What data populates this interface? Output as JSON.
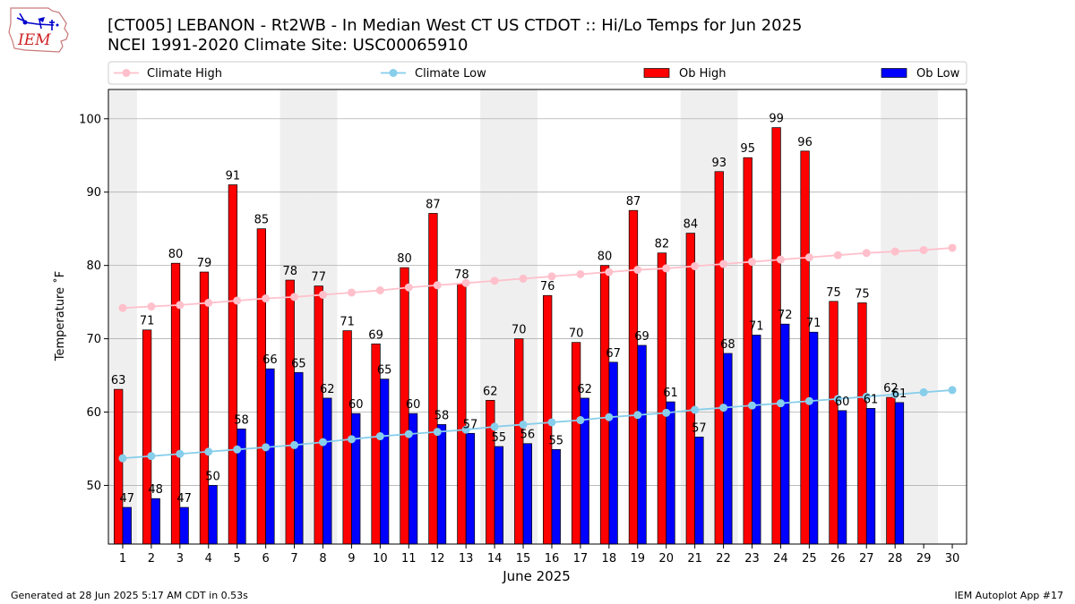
{
  "header": {
    "logo_text": "IEM",
    "title_line1": "[CT005] LEBANON - Rt2WB - In Median West CT US  CTDOT :: Hi/Lo Temps for Jun 2025",
    "title_line2": "NCEI 1991-2020 Climate Site: USC00065910"
  },
  "footer": {
    "left": "Generated at 28 Jun 2025 5:17 AM CDT in 0.53s",
    "right": "IEM Autoplot App #17"
  },
  "colors": {
    "ob_high": "#ff0000",
    "ob_low": "#0000ff",
    "climate_high": "#ffc0cb",
    "climate_low": "#87ceeb",
    "weekend_shade": "#efefef",
    "grid": "#b0b0b0"
  },
  "chart_data": {
    "type": "bar",
    "xlabel": "June 2025",
    "ylabel": "Temperature ˚F",
    "ylim": [
      42,
      104
    ],
    "yticks": [
      50,
      60,
      70,
      80,
      90,
      100
    ],
    "xlim": [
      0.5,
      30.5
    ],
    "days": [
      1,
      2,
      3,
      4,
      5,
      6,
      7,
      8,
      9,
      10,
      11,
      12,
      13,
      14,
      15,
      16,
      17,
      18,
      19,
      20,
      21,
      22,
      23,
      24,
      25,
      26,
      27,
      28,
      29,
      30
    ],
    "weekend_days": [
      1,
      7,
      8,
      14,
      15,
      21,
      22,
      28,
      29
    ],
    "grid": "horizontal",
    "legend_placement": "top",
    "legend": [
      "Climate High",
      "Climate Low",
      "Ob High",
      "Ob Low"
    ],
    "series": [
      {
        "name": "Ob High",
        "kind": "bar",
        "values": [
          63,
          71,
          80,
          79,
          91,
          85,
          78,
          77,
          71,
          69,
          80,
          87,
          78,
          62,
          70,
          76,
          70,
          80,
          87,
          82,
          84,
          93,
          95,
          99,
          96,
          75,
          75,
          62
        ],
        "display": [
          63.1,
          71.2,
          80.3,
          79.1,
          91.0,
          85.0,
          78.0,
          77.2,
          71.1,
          69.3,
          79.7,
          87.1,
          77.5,
          61.6,
          70.0,
          75.9,
          69.5,
          80.0,
          87.5,
          81.7,
          84.4,
          92.8,
          94.7,
          98.8,
          95.6,
          75.1,
          74.9,
          62.0
        ]
      },
      {
        "name": "Ob Low",
        "kind": "bar",
        "values": [
          47,
          48,
          47,
          50,
          58,
          66,
          65,
          62,
          60,
          65,
          60,
          58,
          57,
          55,
          56,
          55,
          62,
          67,
          69,
          61,
          57,
          68,
          71,
          72,
          71,
          60,
          61,
          61
        ],
        "display": [
          47.0,
          48.2,
          47.0,
          50.0,
          57.7,
          65.9,
          65.4,
          61.9,
          59.8,
          64.5,
          59.8,
          58.3,
          57.1,
          55.3,
          55.7,
          54.9,
          61.9,
          66.8,
          69.1,
          61.4,
          56.6,
          68.0,
          70.5,
          72.0,
          70.9,
          60.2,
          60.5,
          61.3
        ]
      },
      {
        "name": "Climate High",
        "kind": "line",
        "values": [
          74.2,
          74.4,
          74.6,
          74.9,
          75.2,
          75.5,
          75.7,
          76.0,
          76.3,
          76.6,
          77.0,
          77.3,
          77.6,
          77.9,
          78.2,
          78.5,
          78.8,
          79.1,
          79.4,
          79.6,
          79.9,
          80.2,
          80.5,
          80.8,
          81.1,
          81.4,
          81.7,
          81.9,
          82.1,
          82.4
        ]
      },
      {
        "name": "Climate Low",
        "kind": "line",
        "values": [
          53.7,
          54.0,
          54.3,
          54.6,
          54.9,
          55.2,
          55.5,
          55.9,
          56.3,
          56.7,
          57.0,
          57.3,
          57.6,
          58.0,
          58.3,
          58.6,
          58.9,
          59.3,
          59.6,
          59.9,
          60.3,
          60.6,
          60.9,
          61.2,
          61.5,
          61.8,
          62.1,
          62.4,
          62.7,
          63.0
        ]
      }
    ]
  }
}
